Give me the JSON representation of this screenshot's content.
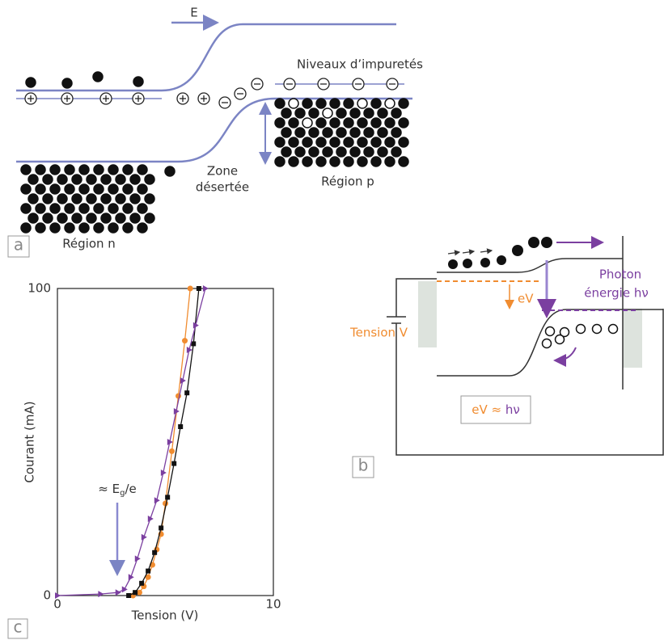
{
  "panel_a": {
    "label": "a",
    "field": "E",
    "impurities": "Niveaux d’impuretés",
    "depletion": [
      "Zone",
      "désertée"
    ],
    "p_region": "Région p",
    "n_region": "Région n"
  },
  "panel_b": {
    "label": "b",
    "voltage": "Tension V",
    "ev": "eV",
    "photon": [
      "Photon",
      "énergie hν"
    ],
    "relation": [
      "eV",
      " ≈ ",
      "hν"
    ]
  },
  "panel_c": {
    "label": "c"
  },
  "chart_data": {
    "type": "line",
    "xlabel": "Tension (V)",
    "ylabel": "Courant (mA)",
    "annotation": [
      "≈ E",
      "g",
      "/e"
    ],
    "xlim": [
      0,
      10
    ],
    "ylim": [
      0,
      100
    ],
    "xticks": [
      0,
      10
    ],
    "yticks": [
      0,
      100
    ],
    "series": [
      {
        "color": "#f08c30",
        "marker": "circle",
        "x": [
          3.5,
          3.8,
          4.0,
          4.2,
          4.4,
          4.6,
          4.8,
          5.0,
          5.3,
          5.6,
          5.9,
          6.15
        ],
        "values": [
          0,
          1,
          3,
          6,
          10,
          15,
          20,
          30,
          47,
          65,
          83,
          100
        ]
      },
      {
        "color": "#111111",
        "marker": "square",
        "x": [
          3.3,
          3.6,
          3.9,
          4.2,
          4.5,
          4.8,
          5.1,
          5.4,
          5.7,
          6.0,
          6.3,
          6.55
        ],
        "values": [
          0,
          1,
          4,
          8,
          14,
          22,
          32,
          43,
          55,
          66,
          82,
          100
        ]
      },
      {
        "color": "#7b3fa0",
        "marker": "triangle",
        "x": [
          0,
          2.0,
          2.8,
          3.1,
          3.4,
          3.7,
          4.0,
          4.3,
          4.6,
          4.9,
          5.2,
          5.5,
          5.8,
          6.1,
          6.4,
          6.85
        ],
        "values": [
          0,
          0.5,
          1,
          2,
          6,
          12,
          19,
          25,
          31,
          40,
          50,
          60,
          70,
          80,
          88,
          100
        ]
      }
    ]
  }
}
